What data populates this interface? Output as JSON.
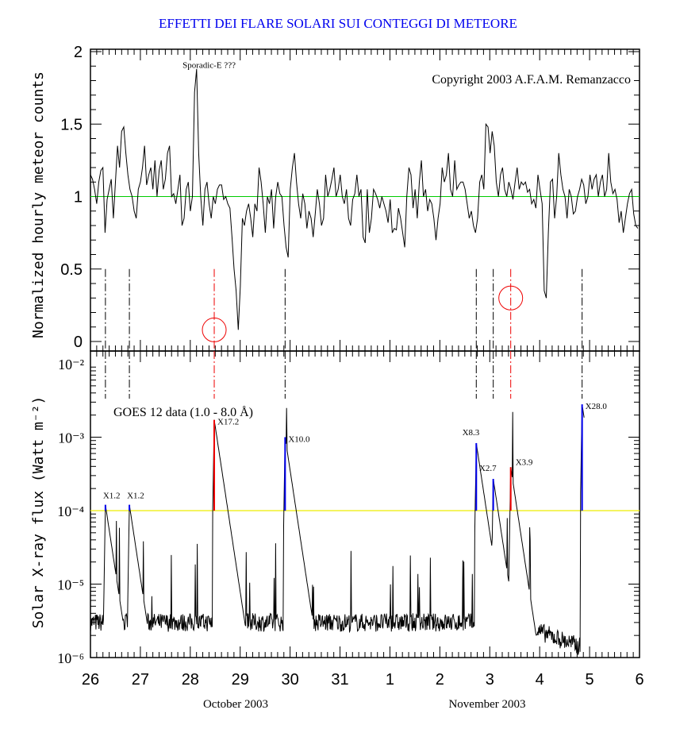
{
  "title": "EFFETTI DEI FLARE SOLARI SUI CONTEGGI DI METEORE",
  "chart_data": [
    {
      "type": "line",
      "panel": "top",
      "ylabel": "Normalized hourly meteor counts",
      "ylim": [
        0,
        2
      ],
      "yticks": [
        "0",
        "0.5",
        "1",
        "1.5",
        "2"
      ],
      "ytick_values": [
        0,
        0.5,
        1,
        1.5,
        2
      ],
      "reference_line": {
        "value": 1,
        "color": "#00cc00"
      },
      "copyright": "Copyright 2003 A.F.A.M. Remanzacco",
      "annotation": {
        "text": "Sporadic-E ???",
        "x": 27.75,
        "y": 1.9
      },
      "dips_circled": [
        {
          "x": 28.48,
          "y": 0.08
        },
        {
          "x": 34.42,
          "y": 0.3
        }
      ],
      "series": [
        {
          "name": "meteor counts",
          "color": "#000000",
          "x_start": 26.0,
          "x_step": 0.0417,
          "values": [
            1.15,
            1.12,
            1.05,
            0.95,
            1.1,
            1.18,
            1.2,
            0.75,
            0.98,
            1.05,
            1.12,
            0.85,
            1.1,
            1.35,
            1.2,
            1.45,
            1.48,
            1.3,
            1.15,
            1.05,
            1.0,
            0.9,
            0.85,
            1.05,
            1.1,
            1.2,
            1.35,
            1.08,
            1.15,
            1.2,
            1.05,
            1.25,
            1.0,
            1.18,
            1.25,
            1.05,
            1.12,
            1.3,
            1.35,
            1.0,
            1.02,
            0.95,
            1.05,
            1.15,
            0.8,
            0.85,
            1.05,
            1.1,
            0.9,
            1.0,
            1.72,
            1.88,
            1.3,
            1.0,
            0.8,
            1.05,
            1.1,
            0.95,
            0.85,
            1.0,
            0.95,
            1.05,
            1.08,
            1.08,
            0.98,
            1.0,
            0.95,
            0.92,
            0.72,
            0.5,
            0.35,
            0.08,
            0.38,
            0.85,
            0.8,
            0.9,
            0.95,
            0.85,
            0.72,
            0.95,
            0.9,
            1.2,
            1.1,
            0.95,
            0.75,
            1.0,
            0.95,
            1.05,
            0.78,
            1.0,
            1.1,
            1.02,
            1.0,
            0.8,
            0.65,
            0.58,
            1.05,
            1.2,
            1.3,
            1.1,
            0.95,
            0.85,
            1.02,
            0.95,
            0.78,
            0.9,
            0.85,
            0.72,
            0.88,
            1.05,
            0.95,
            0.8,
            0.85,
            1.15,
            1.0,
            1.05,
            1.12,
            1.2,
            1.0,
            1.05,
            1.15,
            1.0,
            0.95,
            1.05,
            0.85,
            0.8,
            0.98,
            1.02,
            1.15,
            1.0,
            1.05,
            0.72,
            0.68,
            1.05,
            0.75,
            0.85,
            1.05,
            1.02,
            0.98,
            0.92,
            1.0,
            0.95,
            0.9,
            0.82,
            0.98,
            0.75,
            0.78,
            0.77,
            0.92,
            0.85,
            0.75,
            0.65,
            1.0,
            1.2,
            1.15,
            0.92,
            1.05,
            0.85,
            1.1,
            1.25,
            1.0,
            1.05,
            0.9,
            0.98,
            0.95,
            0.85,
            0.7,
            0.85,
            0.95,
            1.2,
            1.1,
            1.15,
            1.3,
            1.05,
            1.0,
            1.25,
            1.05,
            1.08,
            1.1,
            1.1,
            1.05,
            0.95,
            0.85,
            0.9,
            0.8,
            0.75,
            0.85,
            1.1,
            1.15,
            1.05,
            1.5,
            1.48,
            1.3,
            1.45,
            1.35,
            1.1,
            1.0,
            1.15,
            1.2,
            1.05,
            1.0,
            1.1,
            1.05,
            0.98,
            1.1,
            1.2,
            1.05,
            1.1,
            1.08,
            1.1,
            1.03,
            1.05,
            0.95,
            0.98,
            0.92,
            1.15,
            1.05,
            0.95,
            0.35,
            0.3,
            0.75,
            1.1,
            1.12,
            0.85,
            1.0,
            1.3,
            1.15,
            1.05,
            1.0,
            0.85,
            1.05,
            1.0,
            0.88,
            0.9,
            1.0,
            1.05,
            1.12,
            1.08,
            0.95,
            1.0,
            1.15,
            1.05,
            1.12,
            1.15,
            1.0,
            1.1,
            1.15,
            1.0,
            1.05,
            1.3,
            1.1,
            1.02,
            1.05,
            0.98,
            0.82,
            0.9,
            0.75,
            0.85,
            0.95,
            1.02,
            1.05,
            0.88,
            0.8,
            0.78,
            0.9,
            0.95,
            0.8,
            0.85,
            1.15,
            0.85,
            0.8,
            0.75,
            0.82,
            0.9,
            1.32,
            1.15,
            0.98,
            1.0,
            0.97,
            1.0,
            0.98,
            0.95,
            0.92
          ]
        }
      ],
      "event_markers": [
        {
          "x": 26.3,
          "color": "#000000"
        },
        {
          "x": 26.78,
          "color": "#000000"
        },
        {
          "x": 28.48,
          "color": "#ee0000"
        },
        {
          "x": 29.9,
          "color": "#000000"
        },
        {
          "x": 33.73,
          "color": "#000000"
        },
        {
          "x": 34.07,
          "color": "#000000"
        },
        {
          "x": 34.42,
          "color": "#ee0000"
        },
        {
          "x": 35.85,
          "color": "#000000"
        }
      ]
    },
    {
      "type": "line",
      "panel": "bottom",
      "scale": "log",
      "ylabel": "Solar X-ray flux (Watt m⁻²)",
      "ylim": [
        1e-06,
        0.01
      ],
      "yticks": [
        "10⁻⁶",
        "10⁻⁵",
        "10⁻⁴",
        "10⁻³",
        "10⁻²"
      ],
      "ytick_exponents": [
        -6,
        -5,
        -4,
        -3,
        -2
      ],
      "reference_line": {
        "value": 0.0001,
        "color": "#eeee00"
      },
      "data_label": "GOES 12 data (1.0 - 8.0 Å)",
      "flares": [
        {
          "label": "X1.2",
          "x": 26.3,
          "peak": 0.00012,
          "color": "#0000ee"
        },
        {
          "label": "X1.2",
          "x": 26.78,
          "peak": 0.00012,
          "color": "#0000ee"
        },
        {
          "label": "X17.2",
          "x": 28.48,
          "peak": 0.00172,
          "color": "#ee0000"
        },
        {
          "label": "X10.0",
          "x": 29.9,
          "peak": 0.001,
          "color": "#0000ee"
        },
        {
          "label": "X8.3",
          "x": 33.73,
          "peak": 0.00083,
          "color": "#0000ee"
        },
        {
          "label": "X2.7",
          "x": 34.07,
          "peak": 0.00027,
          "color": "#0000ee"
        },
        {
          "label": "X3.9",
          "x": 34.42,
          "peak": 0.00039,
          "color": "#ee0000"
        },
        {
          "label": "X28.0",
          "x": 35.85,
          "peak": 0.0028,
          "color": "#0000ee"
        }
      ]
    }
  ],
  "x_axis": {
    "range": [
      26,
      37
    ],
    "tick_labels": [
      "26",
      "27",
      "28",
      "29",
      "30",
      "31",
      "1",
      "2",
      "3",
      "4",
      "5",
      "6"
    ],
    "month_labels": [
      "October 2003",
      "November 2003"
    ]
  }
}
